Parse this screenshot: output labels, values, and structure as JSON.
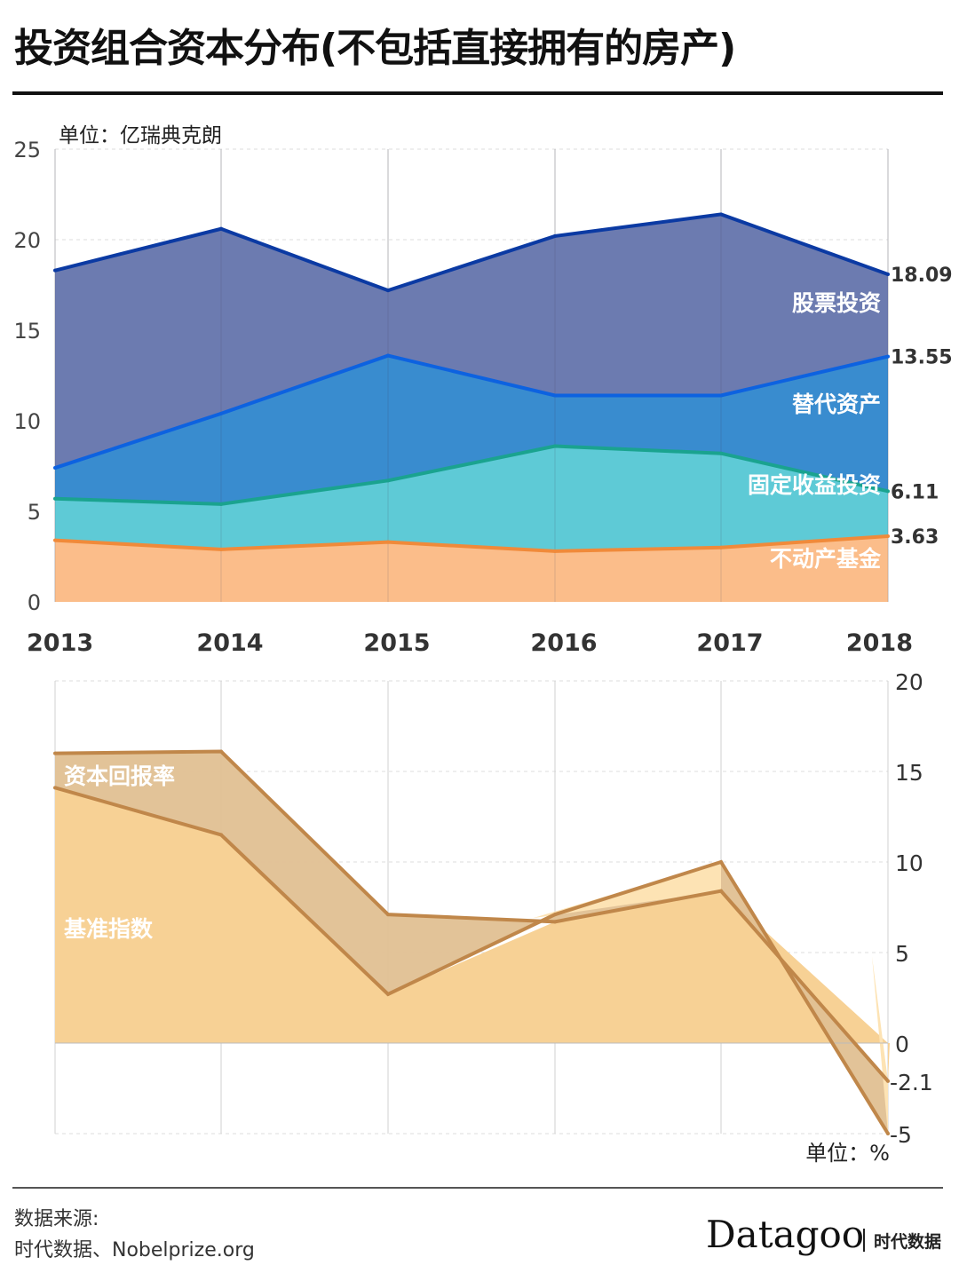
{
  "header": {
    "title": "投资组合资本分布(不包括直接拥有的房产)"
  },
  "chart_data": [
    {
      "type": "area",
      "stacked": true,
      "title": "投资组合资本分布(不包括直接拥有的房产)",
      "unit_label": "单位：亿瑞典克朗",
      "categories": [
        "2013",
        "2014",
        "2015",
        "2016",
        "2017",
        "2018"
      ],
      "ylim": [
        0,
        25
      ],
      "yticks": [
        0,
        5,
        10,
        15,
        20,
        25
      ],
      "grid": true,
      "series": [
        {
          "name": "不动产基金",
          "values": [
            3.4,
            2.9,
            3.3,
            2.8,
            3.0,
            3.63
          ],
          "fill": "#fbbd8a",
          "line": "#f08a3a",
          "cumulative_end_label": "3.63"
        },
        {
          "name": "固定收益投资",
          "values": [
            2.3,
            2.5,
            3.4,
            5.8,
            5.2,
            2.48
          ],
          "fill": "#5ecad6",
          "line": "#1aa38f",
          "cumulative_end_label": "6.11"
        },
        {
          "name": "替代资产",
          "values": [
            1.7,
            5.0,
            6.9,
            2.8,
            3.2,
            7.44
          ],
          "fill": "#398ccf",
          "line": "#0d62e0",
          "cumulative_end_label": "13.55"
        },
        {
          "name": "股票投资",
          "values": [
            10.9,
            10.2,
            3.6,
            8.8,
            10.0,
            4.54
          ],
          "fill": "#6c7bb0",
          "line": "#0b3aa3",
          "cumulative_end_label": "18.09"
        }
      ],
      "cumulative_totals": [
        18.3,
        20.6,
        17.2,
        20.2,
        21.4,
        18.09
      ]
    },
    {
      "type": "area",
      "title": "",
      "unit_label": "单位：%",
      "categories": [
        "2013",
        "2014",
        "2015",
        "2016",
        "2017",
        "2018"
      ],
      "ylim": [
        -5,
        20
      ],
      "yticks": [
        20,
        15,
        10,
        5,
        0,
        -5
      ],
      "grid": true,
      "series": [
        {
          "name": "资本回报率",
          "values": [
            16.0,
            16.1,
            7.1,
            6.7,
            8.4,
            -2.1
          ],
          "end_label": "-2.1"
        },
        {
          "name": "基准指数",
          "values": [
            14.1,
            11.5,
            2.7,
            7.1,
            10.0,
            -5.0
          ],
          "end_label": "-5"
        }
      ],
      "colors": {
        "line": "#c0874a",
        "fill_main": "#f7d195",
        "fill_between": "#e0c092",
        "fill_light": "#fde3b4"
      }
    }
  ],
  "footer": {
    "source_label": "数据来源:",
    "source_text": "时代数据、Nobelprize.org",
    "logo": "Datagoo",
    "logo_cn": "时代数据"
  }
}
